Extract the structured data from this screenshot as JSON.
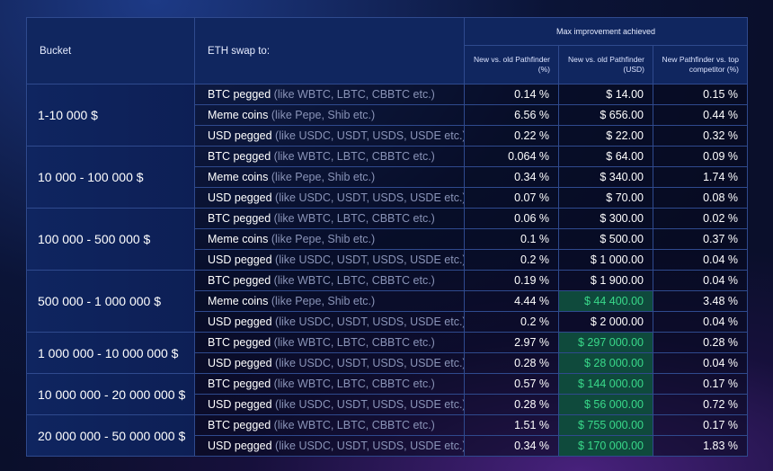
{
  "header": {
    "bucket": "Bucket",
    "swap": "ETH swap to:",
    "group": "Max improvement achieved",
    "col1": "New vs. old Pathfinder (%)",
    "col2": "New vs. old Pathfinder (USD)",
    "col3": "New Pathfinder vs. top competitor (%)"
  },
  "groups": [
    {
      "bucket": "1-10 000 $",
      "rows": [
        {
          "main": "BTC pegged",
          "note": " (like WBTC, LBTC, CBBTC etc.)",
          "c1": "0.14 %",
          "c2": "$ 14.00",
          "c3": "0.15 %",
          "hl": false
        },
        {
          "main": "Meme coins",
          "note": " (like Pepe, Shib etc.)",
          "c1": "6.56 %",
          "c2": "$ 656.00",
          "c3": "0.44 %",
          "hl": false
        },
        {
          "main": "USD pegged",
          "note": " (like USDC, USDT, USDS, USDE etc.)",
          "c1": "0.22 %",
          "c2": "$ 22.00",
          "c3": "0.32 %",
          "hl": false
        }
      ]
    },
    {
      "bucket": "10 000 - 100 000 $",
      "rows": [
        {
          "main": "BTC pegged",
          "note": " (like WBTC, LBTC, CBBTC etc.)",
          "c1": "0.064 %",
          "c2": "$ 64.00",
          "c3": "0.09 %",
          "hl": false
        },
        {
          "main": "Meme coins",
          "note": " (like Pepe, Shib etc.)",
          "c1": "0.34 %",
          "c2": "$ 340.00",
          "c3": "1.74 %",
          "hl": false
        },
        {
          "main": "USD pegged",
          "note": " (like USDC, USDT, USDS, USDE etc.)",
          "c1": "0.07 %",
          "c2": "$ 70.00",
          "c3": "0.08 %",
          "hl": false
        }
      ]
    },
    {
      "bucket": "100 000 - 500 000 $",
      "rows": [
        {
          "main": "BTC pegged",
          "note": " (like WBTC, LBTC, CBBTC etc.)",
          "c1": "0.06 %",
          "c2": "$ 300.00",
          "c3": "0.02 %",
          "hl": false
        },
        {
          "main": "Meme coins",
          "note": " (like Pepe, Shib etc.)",
          "c1": "0.1 %",
          "c2": "$ 500.00",
          "c3": "0.37 %",
          "hl": false
        },
        {
          "main": "USD pegged",
          "note": " (like USDC, USDT, USDS, USDE etc.)",
          "c1": "0.2 %",
          "c2": "$ 1 000.00",
          "c3": "0.04 %",
          "hl": false
        }
      ]
    },
    {
      "bucket": "500 000 - 1 000 000 $",
      "rows": [
        {
          "main": "BTC pegged",
          "note": " (like WBTC, LBTC, CBBTC etc.)",
          "c1": "0.19 %",
          "c2": "$ 1 900.00",
          "c3": "0.04 %",
          "hl": false
        },
        {
          "main": "Meme coins",
          "note": " (like Pepe, Shib etc.)",
          "c1": "4.44 %",
          "c2": "$ 44 400.00",
          "c3": "3.48 %",
          "hl": true
        },
        {
          "main": "USD pegged",
          "note": " (like USDC, USDT, USDS, USDE etc.)",
          "c1": "0.2 %",
          "c2": "$ 2 000.00",
          "c3": "0.04 %",
          "hl": false
        }
      ]
    },
    {
      "bucket": "1 000 000 - 10 000 000 $",
      "rows": [
        {
          "main": "BTC pegged",
          "note": " (like WBTC, LBTC, CBBTC etc.)",
          "c1": "2.97 %",
          "c2": "$ 297 000.00",
          "c3": "0.28 %",
          "hl": true
        },
        {
          "main": "USD pegged",
          "note": " (like USDC, USDT, USDS, USDE etc.)",
          "c1": "0.28 %",
          "c2": "$ 28 000.00",
          "c3": "0.04 %",
          "hl": true
        }
      ]
    },
    {
      "bucket": "10 000 000 - 20 000 000 $",
      "rows": [
        {
          "main": "BTC pegged",
          "note": " (like WBTC, LBTC, CBBTC etc.)",
          "c1": "0.57 %",
          "c2": "$ 144 000.00",
          "c3": "0.17 %",
          "hl": true
        },
        {
          "main": "USD pegged",
          "note": " (like USDC, USDT, USDS, USDE etc.)",
          "c1": "0.28 %",
          "c2": "$ 56 000.00",
          "c3": "0.72 %",
          "hl": true
        }
      ]
    },
    {
      "bucket": "20 000 000 - 50 000 000 $",
      "rows": [
        {
          "main": "BTC pegged",
          "note": " (like WBTC, LBTC, CBBTC etc.)",
          "c1": "1.51 %",
          "c2": "$ 755 000.00",
          "c3": "0.17 %",
          "hl": true
        },
        {
          "main": "USD pegged",
          "note": " (like USDC, USDT, USDS, USDE etc.)",
          "c1": "0.34 %",
          "c2": "$ 170 000.00",
          "c3": "1.83 %",
          "hl": true
        }
      ]
    }
  ]
}
